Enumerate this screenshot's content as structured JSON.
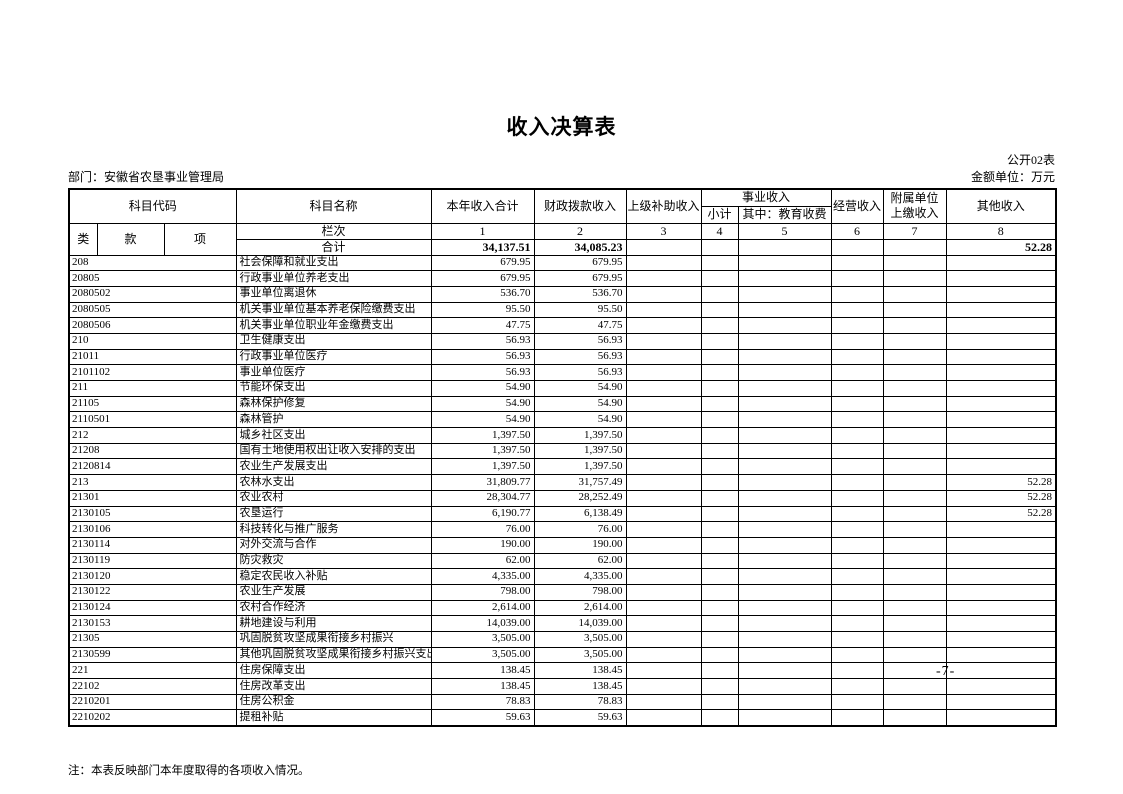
{
  "page": {
    "title": "收入决算表",
    "doc_label": "公开02表",
    "department": "部门：安徽省农垦事业管理局",
    "unit_label": "金额单位：万元",
    "note": "注：本表反映部门本年度取得的各项收入情况。",
    "page_number": "-7-"
  },
  "table": {
    "headers": {
      "subject_code": "科目代码",
      "subject_name": "科目名称",
      "col_class": "类",
      "col_section": "款",
      "col_item": "项",
      "total_income": "本年收入合计",
      "fiscal_appropriation": "财政拨款收入",
      "superior_subsidy": "上级补助收入",
      "business_income": "事业收入",
      "business_subtotal": "小计",
      "education_fees": "其中：教育收费",
      "operating_income": "经营收入",
      "affiliated_line1": "附属单位",
      "affiliated_line2": "上缴收入",
      "other_income": "其他收入",
      "column_index_label": "栏次",
      "total_label": "合计"
    },
    "column_indices": [
      "1",
      "2",
      "3",
      "4",
      "5",
      "6",
      "7",
      "8"
    ],
    "total_row": [
      "34,137.51",
      "34,085.23",
      "",
      "",
      "",
      "",
      "",
      "52.28"
    ],
    "rows": [
      [
        "208",
        "社会保障和就业支出",
        "679.95",
        "679.95",
        "",
        "",
        "",
        "",
        "",
        ""
      ],
      [
        "20805",
        "行政事业单位养老支出",
        "679.95",
        "679.95",
        "",
        "",
        "",
        "",
        "",
        ""
      ],
      [
        "2080502",
        "事业单位离退休",
        "536.70",
        "536.70",
        "",
        "",
        "",
        "",
        "",
        ""
      ],
      [
        "2080505",
        "机关事业单位基本养老保险缴费支出",
        "95.50",
        "95.50",
        "",
        "",
        "",
        "",
        "",
        ""
      ],
      [
        "2080506",
        "机关事业单位职业年金缴费支出",
        "47.75",
        "47.75",
        "",
        "",
        "",
        "",
        "",
        ""
      ],
      [
        "210",
        "卫生健康支出",
        "56.93",
        "56.93",
        "",
        "",
        "",
        "",
        "",
        ""
      ],
      [
        "21011",
        "行政事业单位医疗",
        "56.93",
        "56.93",
        "",
        "",
        "",
        "",
        "",
        ""
      ],
      [
        "2101102",
        "事业单位医疗",
        "56.93",
        "56.93",
        "",
        "",
        "",
        "",
        "",
        ""
      ],
      [
        "211",
        "节能环保支出",
        "54.90",
        "54.90",
        "",
        "",
        "",
        "",
        "",
        ""
      ],
      [
        "21105",
        "森林保护修复",
        "54.90",
        "54.90",
        "",
        "",
        "",
        "",
        "",
        ""
      ],
      [
        "2110501",
        "森林管护",
        "54.90",
        "54.90",
        "",
        "",
        "",
        "",
        "",
        ""
      ],
      [
        "212",
        "城乡社区支出",
        "1,397.50",
        "1,397.50",
        "",
        "",
        "",
        "",
        "",
        ""
      ],
      [
        "21208",
        "国有土地使用权出让收入安排的支出",
        "1,397.50",
        "1,397.50",
        "",
        "",
        "",
        "",
        "",
        ""
      ],
      [
        "2120814",
        "农业生产发展支出",
        "1,397.50",
        "1,397.50",
        "",
        "",
        "",
        "",
        "",
        ""
      ],
      [
        "213",
        "农林水支出",
        "31,809.77",
        "31,757.49",
        "",
        "",
        "",
        "",
        "",
        "52.28"
      ],
      [
        "21301",
        "农业农村",
        "28,304.77",
        "28,252.49",
        "",
        "",
        "",
        "",
        "",
        "52.28"
      ],
      [
        "2130105",
        "农垦运行",
        "6,190.77",
        "6,138.49",
        "",
        "",
        "",
        "",
        "",
        "52.28"
      ],
      [
        "2130106",
        "科技转化与推广服务",
        "76.00",
        "76.00",
        "",
        "",
        "",
        "",
        "",
        ""
      ],
      [
        "2130114",
        "对外交流与合作",
        "190.00",
        "190.00",
        "",
        "",
        "",
        "",
        "",
        ""
      ],
      [
        "2130119",
        "防灾救灾",
        "62.00",
        "62.00",
        "",
        "",
        "",
        "",
        "",
        ""
      ],
      [
        "2130120",
        "稳定农民收入补贴",
        "4,335.00",
        "4,335.00",
        "",
        "",
        "",
        "",
        "",
        ""
      ],
      [
        "2130122",
        "农业生产发展",
        "798.00",
        "798.00",
        "",
        "",
        "",
        "",
        "",
        ""
      ],
      [
        "2130124",
        "农村合作经济",
        "2,614.00",
        "2,614.00",
        "",
        "",
        "",
        "",
        "",
        ""
      ],
      [
        "2130153",
        "耕地建设与利用",
        "14,039.00",
        "14,039.00",
        "",
        "",
        "",
        "",
        "",
        ""
      ],
      [
        "21305",
        "巩固脱贫攻坚成果衔接乡村振兴",
        "3,505.00",
        "3,505.00",
        "",
        "",
        "",
        "",
        "",
        ""
      ],
      [
        "2130599",
        "其他巩固脱贫攻坚成果衔接乡村振兴支出",
        "3,505.00",
        "3,505.00",
        "",
        "",
        "",
        "",
        "",
        ""
      ],
      [
        "221",
        "住房保障支出",
        "138.45",
        "138.45",
        "",
        "",
        "",
        "",
        "",
        ""
      ],
      [
        "22102",
        "住房改革支出",
        "138.45",
        "138.45",
        "",
        "",
        "",
        "",
        "",
        ""
      ],
      [
        "2210201",
        "住房公积金",
        "78.83",
        "78.83",
        "",
        "",
        "",
        "",
        "",
        ""
      ],
      [
        "2210202",
        "提租补贴",
        "59.63",
        "59.63",
        "",
        "",
        "",
        "",
        "",
        ""
      ]
    ]
  }
}
